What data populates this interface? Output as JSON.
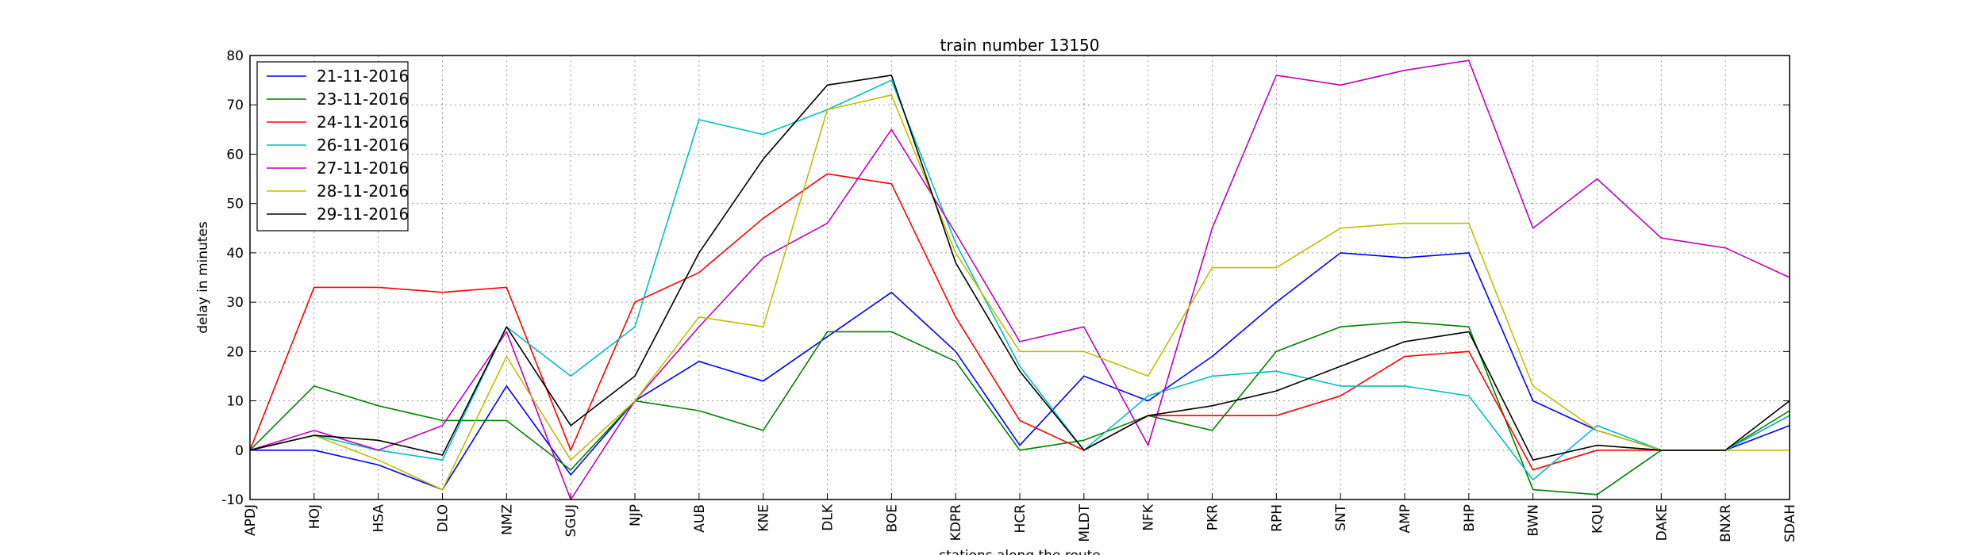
{
  "chart_data": {
    "type": "line",
    "title": "train number 13150",
    "xlabel": "stations along the route",
    "ylabel": "delay in minutes",
    "ylim": [
      -10,
      80
    ],
    "yticks": [
      -10,
      0,
      10,
      20,
      30,
      40,
      50,
      60,
      70,
      80
    ],
    "grid": true,
    "legend_position": "top-left",
    "categories": [
      "APDJ",
      "HOJ",
      "HSA",
      "DLO",
      "NMZ",
      "SGUJ",
      "NJP",
      "AUB",
      "KNE",
      "DLK",
      "BOE",
      "KDPR",
      "HCR",
      "MLDT",
      "NFK",
      "PKR",
      "RPH",
      "SNT",
      "AMP",
      "BHP",
      "BWN",
      "KQU",
      "DAKE",
      "BNXR",
      "SDAH"
    ],
    "series": [
      {
        "name": "21-11-2016",
        "color": "#0000ff",
        "values": [
          0,
          0,
          -3,
          -8,
          13,
          -5,
          10,
          18,
          14,
          23,
          32,
          20,
          1,
          15,
          10,
          19,
          30,
          40,
          39,
          40,
          10,
          4,
          0,
          0,
          5
        ]
      },
      {
        "name": "23-11-2016",
        "color": "#008000",
        "values": [
          0,
          13,
          9,
          6,
          6,
          -4,
          10,
          8,
          4,
          24,
          24,
          18,
          0,
          2,
          7,
          4,
          20,
          25,
          26,
          25,
          -8,
          -9,
          0,
          0,
          8
        ]
      },
      {
        "name": "24-11-2016",
        "color": "#ff0000",
        "values": [
          0,
          33,
          33,
          32,
          33,
          0,
          30,
          36,
          47,
          56,
          54,
          27,
          6,
          0,
          7,
          7,
          7,
          11,
          19,
          20,
          -4,
          0,
          0,
          0,
          7
        ]
      },
      {
        "name": "26-11-2016",
        "color": "#00bfbf",
        "values": [
          0,
          3,
          0,
          -2,
          25,
          15,
          25,
          67,
          64,
          69,
          75,
          42,
          17,
          0,
          11,
          15,
          16,
          13,
          13,
          11,
          -6,
          5,
          0,
          0,
          7
        ]
      },
      {
        "name": "27-11-2016",
        "color": "#bf00bf",
        "values": [
          0,
          4,
          0,
          5,
          24,
          -10,
          10,
          25,
          39,
          46,
          65,
          44,
          22,
          25,
          1,
          45,
          76,
          74,
          77,
          79,
          45,
          55,
          43,
          41,
          35
        ]
      },
      {
        "name": "28-11-2016",
        "color": "#bfbf00",
        "values": [
          0,
          3,
          -2,
          -8,
          19,
          -2,
          10,
          27,
          25,
          69,
          72,
          40,
          20,
          20,
          15,
          37,
          37,
          45,
          46,
          46,
          13,
          4,
          0,
          0,
          0
        ]
      },
      {
        "name": "29-11-2016",
        "color": "#000000",
        "values": [
          0,
          3,
          2,
          -1,
          25,
          5,
          15,
          40,
          59,
          74,
          76,
          38,
          16,
          0,
          7,
          9,
          12,
          17,
          22,
          24,
          -2,
          1,
          0,
          0,
          10
        ]
      }
    ]
  }
}
